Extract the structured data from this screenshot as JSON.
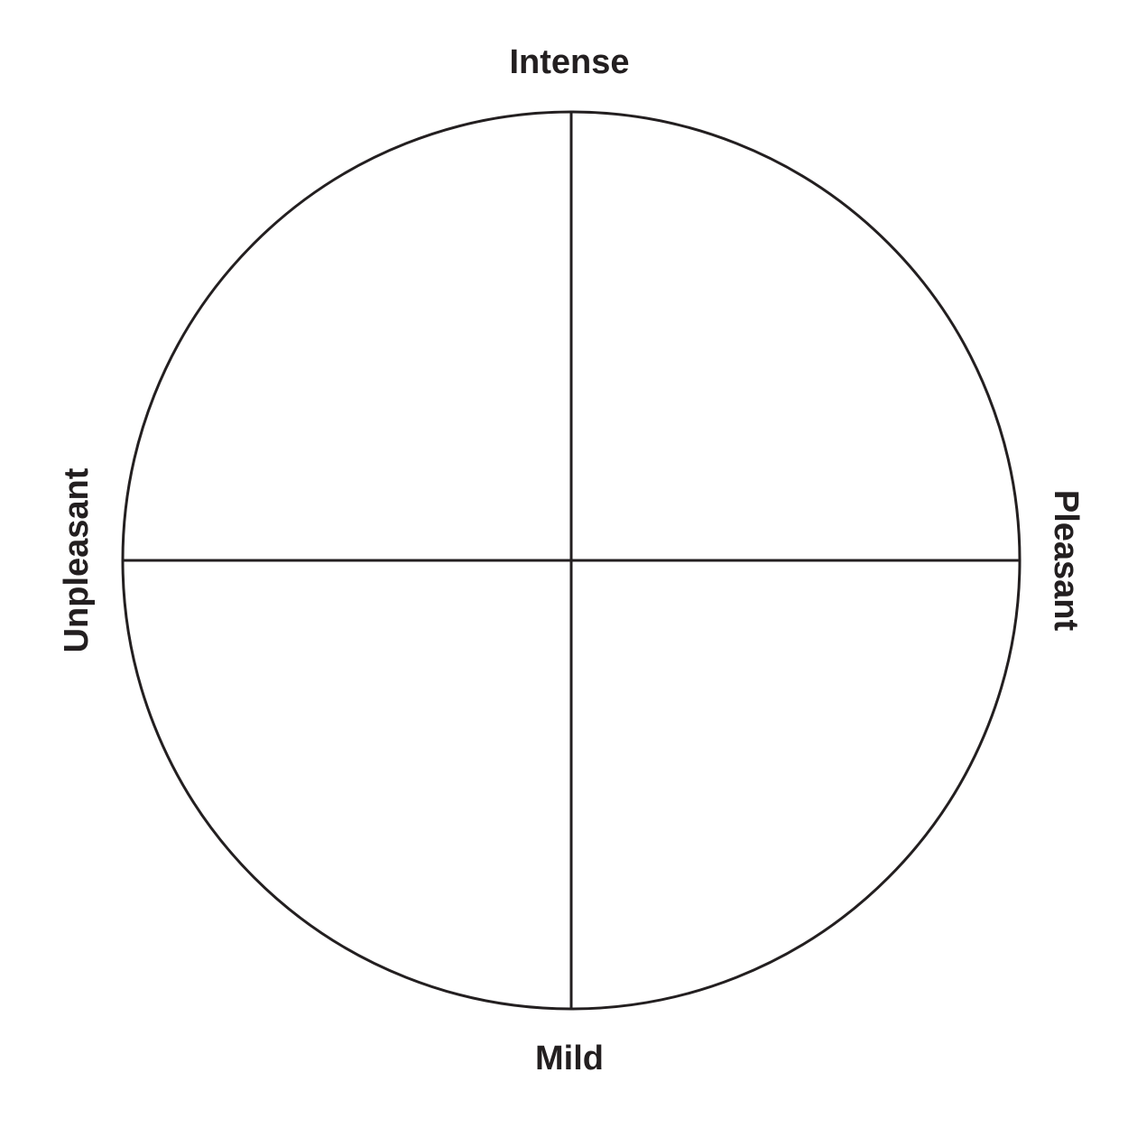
{
  "diagram": {
    "title": "",
    "labels": {
      "top": "Intense",
      "bottom": "Mild",
      "left": "Unpleasant",
      "right": "Pleasant"
    },
    "line_color": "#231f20",
    "background_color": "#ffffff"
  }
}
